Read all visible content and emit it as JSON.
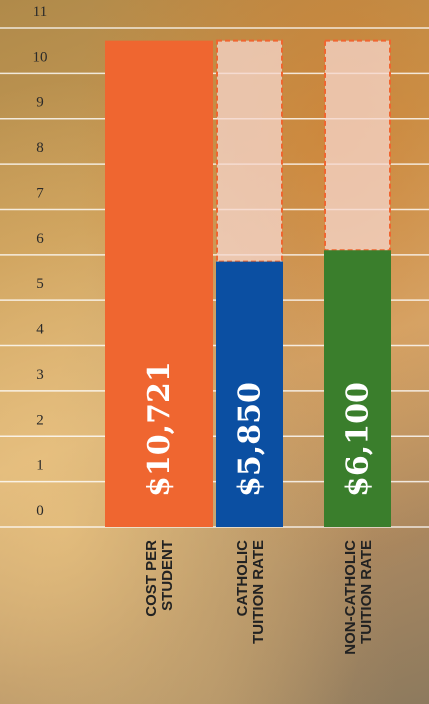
{
  "chart_data": {
    "type": "bar",
    "categories": [
      "COST PER STUDENT",
      "CATHOLIC TUITION RATE",
      "NON-CATHOLIC TUITION RATE"
    ],
    "values": [
      10.721,
      5.85,
      6.1
    ],
    "value_labels": [
      "$10,721",
      "$5,850",
      "$6,100"
    ],
    "colors": [
      "#ef6630",
      "#0b4fa2",
      "#3a7e2c"
    ],
    "ylim": [
      0,
      11
    ],
    "yticks": [
      0,
      1,
      2,
      3,
      4,
      5,
      6,
      7,
      8,
      9,
      10,
      11
    ],
    "grid": true
  }
}
